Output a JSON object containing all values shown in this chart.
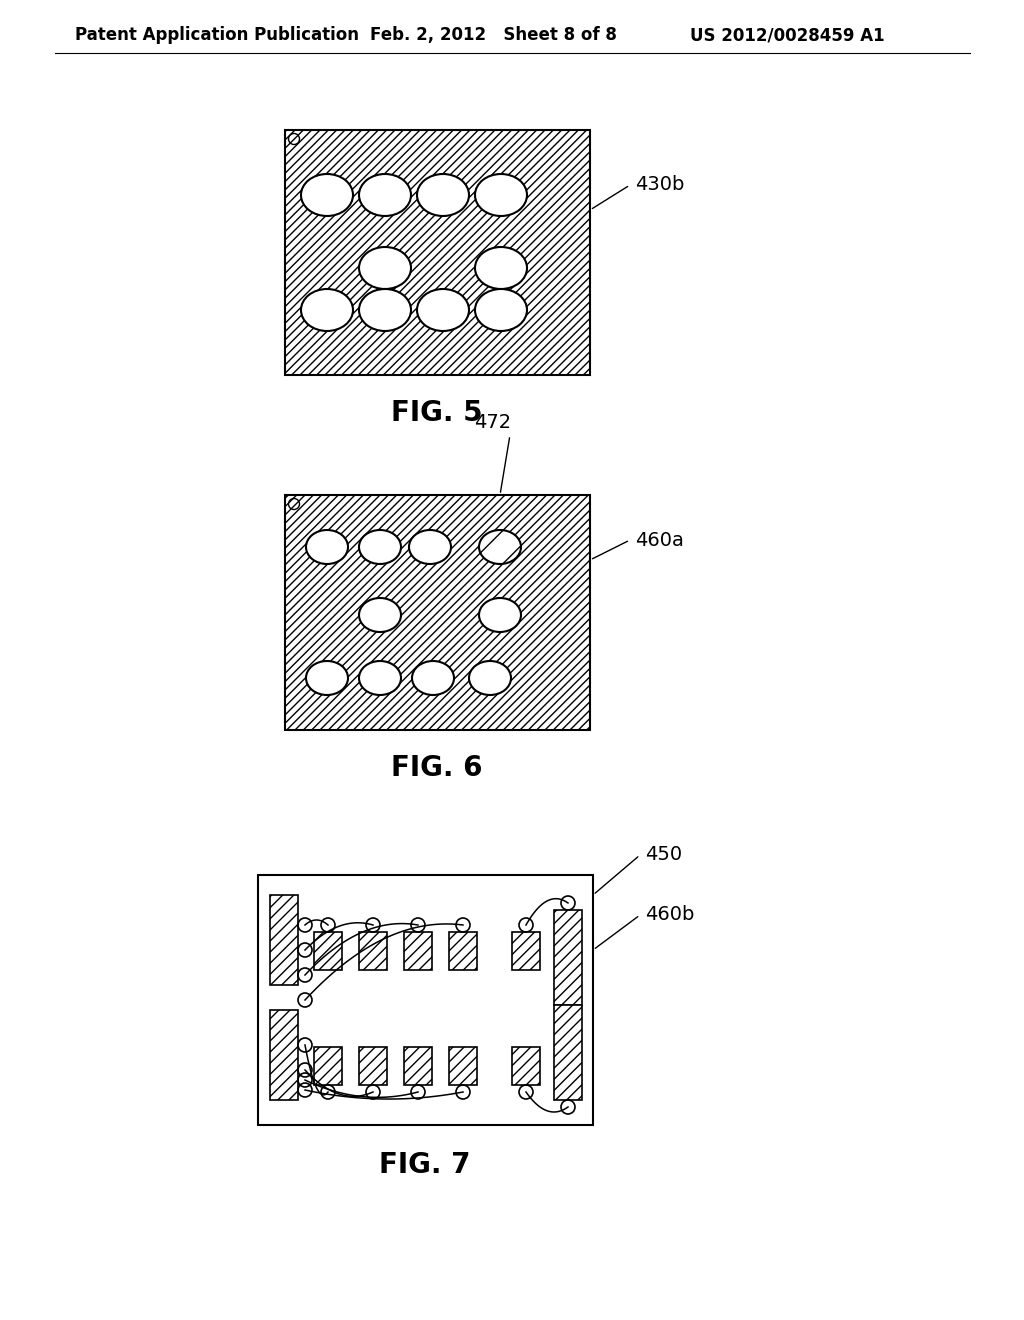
{
  "bg_color": "#ffffff",
  "header_left": "Patent Application Publication",
  "header_mid": "Feb. 2, 2012   Sheet 8 of 8",
  "header_right": "US 2012/0028459 A1",
  "fig5_label": "FIG. 5",
  "fig6_label": "FIG. 6",
  "fig7_label": "FIG. 7",
  "label_430b": "430b",
  "label_472": "472",
  "label_460a": "460a",
  "label_450": "450",
  "label_460b": "460b",
  "hatch_pattern": "////",
  "line_color": "#000000"
}
